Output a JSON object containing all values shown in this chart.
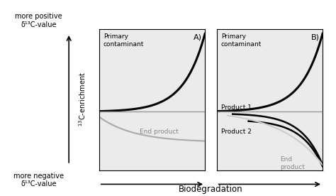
{
  "fig_width": 4.74,
  "fig_height": 2.76,
  "panel_bg": "#ebebeb",
  "panel_A_label": "A)",
  "panel_B_label": "B)",
  "panel_A_text1": "Primary\ncontaminant",
  "panel_A_text2": "End product",
  "panel_B_text1": "Primary\ncontaminant",
  "panel_B_text2": "Product 1",
  "panel_B_text3": "Product 2",
  "panel_B_text4": "End\nproduct",
  "top_label_line1": "more positive",
  "top_label_line2": "δ¹³C-value",
  "bottom_label_line1": "more negative",
  "bottom_label_line2": "δ¹³C-value",
  "y_axis_label": "¹³C-enrichment",
  "x_axis_label": "Biodegradation"
}
